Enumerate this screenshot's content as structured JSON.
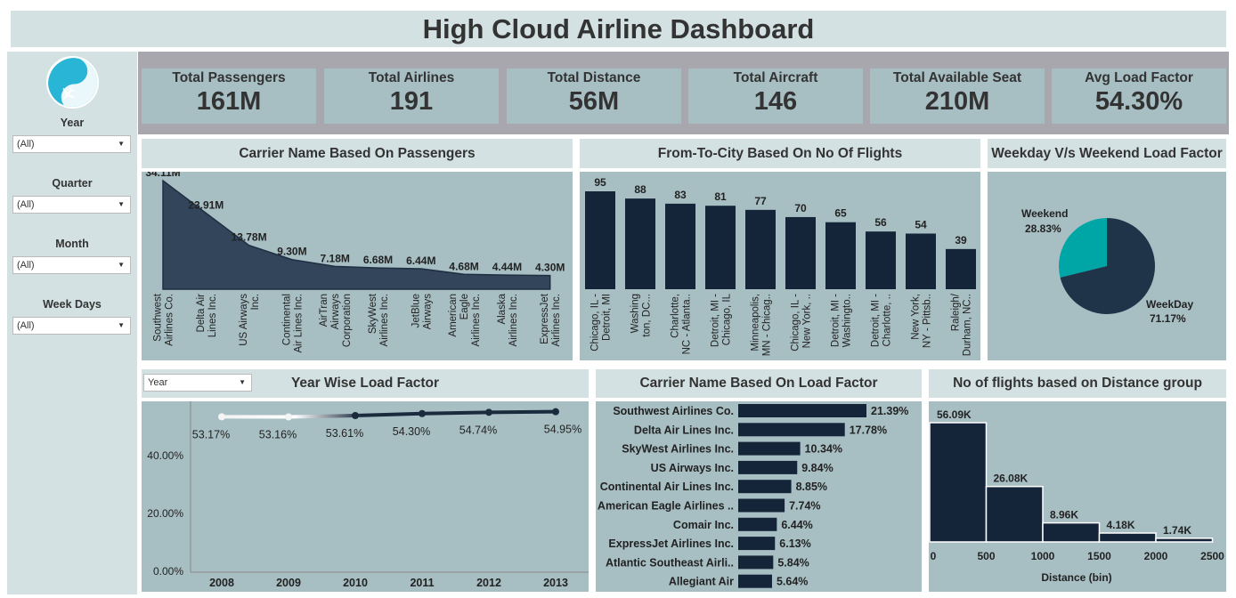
{
  "title": "High Cloud Airline Dashboard",
  "filters": [
    {
      "label": "Year",
      "value": "(All)"
    },
    {
      "label": "Quarter",
      "value": "(All)"
    },
    {
      "label": "Month",
      "value": "(All)"
    },
    {
      "label": "Week Days",
      "value": "(All)"
    }
  ],
  "kpis": [
    {
      "label": "Total Passengers",
      "value": "161M"
    },
    {
      "label": "Total Airlines",
      "value": "191"
    },
    {
      "label": "Total Distance",
      "value": "56M"
    },
    {
      "label": "Total Aircraft",
      "value": "146"
    },
    {
      "label": "Total Available Seat",
      "value": "210M"
    },
    {
      "label": "Avg Load Factor",
      "value": "54.30%"
    }
  ],
  "colors": {
    "dark": "#14253a",
    "teal": "#00a6a6",
    "panel": "#a7bec3",
    "header": "#d3e1e3",
    "logo": "#29b5d6"
  },
  "panels": {
    "carrier_passengers": "Carrier Name Based On Passengers",
    "city_flights": "From-To-City Based On No Of Flights",
    "weekday_weekend": "Weekday V/s Weekend Load Factor",
    "year_load": "Year Wise Load Factor",
    "year_select": "Year",
    "carrier_load": "Carrier Name Based On Load Factor",
    "distance_group": "No of flights based on Distance group"
  },
  "chart_data": [
    {
      "id": "carrier_passengers",
      "type": "area",
      "categories": [
        [
          "Southwest",
          "Airlines Co."
        ],
        [
          "Delta Air",
          "Lines Inc."
        ],
        [
          "US Airways",
          "Inc."
        ],
        [
          "Continental",
          "Air Lines Inc."
        ],
        [
          "AirTran",
          "Airways",
          "Corporation"
        ],
        [
          "SkyWest",
          "Airlines Inc."
        ],
        [
          "JetBlue",
          "Airways"
        ],
        [
          "American",
          "Eagle",
          "Airlines Inc."
        ],
        [
          "Alaska",
          "Airlines Inc."
        ],
        [
          "ExpressJet",
          "Airlines Inc."
        ]
      ],
      "values": [
        34.11,
        23.91,
        13.78,
        9.3,
        7.18,
        6.68,
        6.44,
        4.68,
        4.44,
        4.3
      ],
      "labels": [
        "34.11M",
        "23.91M",
        "13.78M",
        "9.30M",
        "7.18M",
        "6.68M",
        "6.44M",
        "4.68M",
        "4.44M",
        "4.30M"
      ]
    },
    {
      "id": "city_flights",
      "type": "bar",
      "categories": [
        [
          "Chicago, IL -",
          "Detroit, MI"
        ],
        [
          "Washing",
          "ton, DC..."
        ],
        [
          "Charlotte,",
          "NC - Atlanta.."
        ],
        [
          "Detroit, MI -",
          "Chicago, IL"
        ],
        [
          "Minneapolis,",
          "MN - Chicag.."
        ],
        [
          "Chicago, IL -",
          "New York, .."
        ],
        [
          "Detroit, MI -",
          "Washingto.."
        ],
        [
          "Detroit, MI -",
          "Charlotte, .."
        ],
        [
          "New York,",
          "NY - Pittsb.."
        ],
        [
          "Raleigh/",
          "Durham, NC.."
        ]
      ],
      "values": [
        95,
        88,
        83,
        81,
        77,
        70,
        65,
        56,
        54,
        39
      ]
    },
    {
      "id": "weekday_weekend",
      "type": "pie",
      "slices": [
        {
          "name": "Weekend",
          "value": 28.83,
          "label": "28.83%"
        },
        {
          "name": "WeekDay",
          "value": 71.17,
          "label": "71.17%"
        }
      ]
    },
    {
      "id": "year_load",
      "type": "line",
      "x": [
        "2008",
        "2009",
        "2010",
        "2011",
        "2012",
        "2013"
      ],
      "values": [
        53.17,
        53.16,
        53.61,
        54.3,
        54.74,
        54.95
      ],
      "labels": [
        "53.17%",
        "53.16%",
        "53.61%",
        "54.30%",
        "54.74%",
        "54.95%"
      ],
      "yticks": [
        "0.00%",
        "20.00%",
        "40.00%"
      ],
      "ylim": [
        0,
        57
      ]
    },
    {
      "id": "carrier_load",
      "type": "bar",
      "orientation": "horizontal",
      "categories": [
        "Southwest Airlines Co.",
        "Delta Air Lines Inc.",
        "SkyWest Airlines Inc.",
        "US Airways Inc.",
        "Continental Air Lines Inc.",
        "American Eagle Airlines ..",
        "Comair Inc.",
        "ExpressJet Airlines Inc.",
        "Atlantic Southeast Airli..",
        "Allegiant Air"
      ],
      "values": [
        21.39,
        17.78,
        10.34,
        9.84,
        8.85,
        7.74,
        6.44,
        6.13,
        5.84,
        5.64
      ],
      "labels": [
        "21.39%",
        "17.78%",
        "10.34%",
        "9.84%",
        "8.85%",
        "7.74%",
        "6.44%",
        "6.13%",
        "5.84%",
        "5.64%"
      ]
    },
    {
      "id": "distance_group",
      "type": "bar",
      "bins": [
        0,
        500,
        1000,
        1500,
        2000,
        2500
      ],
      "values": [
        56.09,
        26.08,
        8.96,
        4.18,
        1.74
      ],
      "labels": [
        "56.09K",
        "26.08K",
        "8.96K",
        "4.18K",
        "1.74K"
      ],
      "xticks": [
        "0",
        "500",
        "1000",
        "1500",
        "2000",
        "2500"
      ],
      "xlabel": "Distance (bin)"
    }
  ]
}
